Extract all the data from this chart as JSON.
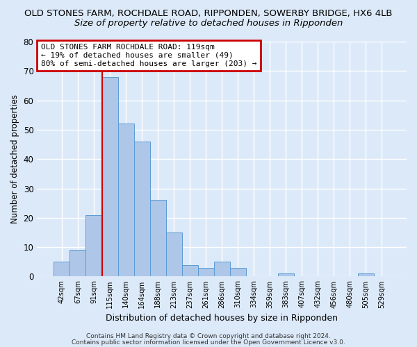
{
  "title": "OLD STONES FARM, ROCHDALE ROAD, RIPPONDEN, SOWERBY BRIDGE, HX6 4LB",
  "subtitle": "Size of property relative to detached houses in Ripponden",
  "xlabel": "Distribution of detached houses by size in Ripponden",
  "ylabel": "Number of detached properties",
  "bin_labels": [
    "42sqm",
    "67sqm",
    "91sqm",
    "115sqm",
    "140sqm",
    "164sqm",
    "188sqm",
    "213sqm",
    "237sqm",
    "261sqm",
    "286sqm",
    "310sqm",
    "334sqm",
    "359sqm",
    "383sqm",
    "407sqm",
    "432sqm",
    "456sqm",
    "480sqm",
    "505sqm",
    "529sqm"
  ],
  "bar_heights": [
    5,
    9,
    21,
    68,
    52,
    46,
    26,
    15,
    4,
    3,
    5,
    3,
    0,
    0,
    1,
    0,
    0,
    0,
    0,
    1,
    0
  ],
  "bar_color": "#aec6e8",
  "bar_edge_color": "#5b9bd5",
  "highlight_line_color": "#cc0000",
  "highlight_line_index": 3,
  "ylim": [
    0,
    80
  ],
  "yticks": [
    0,
    10,
    20,
    30,
    40,
    50,
    60,
    70,
    80
  ],
  "annotation_text": "OLD STONES FARM ROCHDALE ROAD: 119sqm\n← 19% of detached houses are smaller (49)\n80% of semi-detached houses are larger (203) →",
  "annotation_box_color": "#ffffff",
  "annotation_box_edge_color": "#cc0000",
  "footnote1": "Contains HM Land Registry data © Crown copyright and database right 2024.",
  "footnote2": "Contains public sector information licensed under the Open Government Licence v3.0.",
  "bg_color": "#dce9f8",
  "grid_color": "#ffffff",
  "title_fontsize": 9.5,
  "subtitle_fontsize": 9.5
}
